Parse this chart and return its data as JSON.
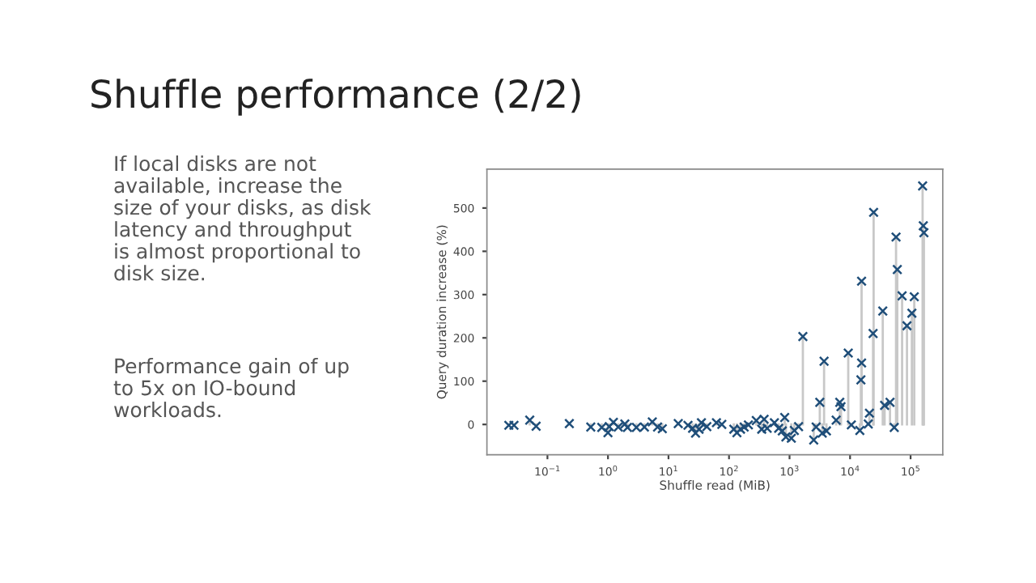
{
  "chart_data": {
    "type": "lollipop",
    "title": "Shuffle performance (2/2)",
    "xlabel": "Shuffle read (MiB)",
    "ylabel": "Query duration increase (%)",
    "annotations": [
      "If local disks are not available, increase the size of your disks, as disk latency and throughput is almost proportional to disk size.",
      "Performance gain of up to 5x on IO-bound workloads."
    ],
    "log": "x",
    "marker": "cross",
    "grid": false,
    "xlim": [
      0.01,
      340000
    ],
    "ylim": [
      -70,
      590
    ],
    "xticks": [
      {
        "value": 0.1,
        "label": "10$^{−1}$"
      },
      {
        "value": 1,
        "label": "10$^{0}$"
      },
      {
        "value": 10,
        "label": "10$^{1}$"
      },
      {
        "value": 100,
        "label": "10$^{2}$"
      },
      {
        "value": 1000,
        "label": "10$^{3}$"
      },
      {
        "value": 10000,
        "label": "10$^{4}$"
      },
      {
        "value": 100000,
        "label": "10$^{5}$"
      }
    ],
    "yticks": [
      0,
      100,
      200,
      300,
      400,
      500
    ],
    "series": [
      {
        "color": "#1f4e79",
        "x": [
          0.023,
          0.028,
          0.051,
          0.065,
          0.23,
          0.52,
          0.79,
          1.0,
          1.05,
          1.23,
          1.48,
          1.9,
          2.1,
          2.95,
          4.0,
          5.4,
          6.6,
          7.9,
          14.5,
          21,
          25,
          28,
          32,
          35,
          43,
          62,
          76,
          120,
          135,
          155,
          178,
          209,
          282,
          347,
          380,
          427,
          562,
          661,
          759,
          832,
          871,
          1070,
          1200,
          1410,
          1660,
          2510,
          2750,
          3160,
          3470,
          3720,
          4070,
          5890,
          6760,
          7080,
          9330,
          10500,
          14500,
          15100,
          15500,
          15500,
          20000,
          20900,
          24000,
          24500,
          34700,
          37200,
          45700,
          53700,
          57500,
          60300,
          72400,
          87100,
          105000,
          115000,
          158000,
          162000,
          166000
        ],
        "values": [
          -2,
          -2,
          10,
          -4,
          2,
          -6,
          -7,
          -19,
          -5,
          5,
          -6,
          1,
          -7,
          -7,
          -6,
          6,
          -6,
          -10,
          2,
          -2,
          -9,
          -20,
          -11,
          4,
          -5,
          4,
          0,
          -11,
          -19,
          -11,
          -6,
          -1,
          9,
          -11,
          12,
          -9,
          4,
          -9,
          -15,
          16,
          -29,
          -32,
          -14,
          -5,
          203,
          -36,
          -6,
          51,
          -20,
          146,
          -15,
          10,
          51,
          41,
          165,
          -1,
          -14,
          103,
          142,
          331,
          1,
          26,
          210,
          490,
          262,
          44,
          51,
          -7,
          433,
          358,
          297,
          228,
          257,
          295,
          551,
          459,
          443
        ]
      }
    ]
  }
}
